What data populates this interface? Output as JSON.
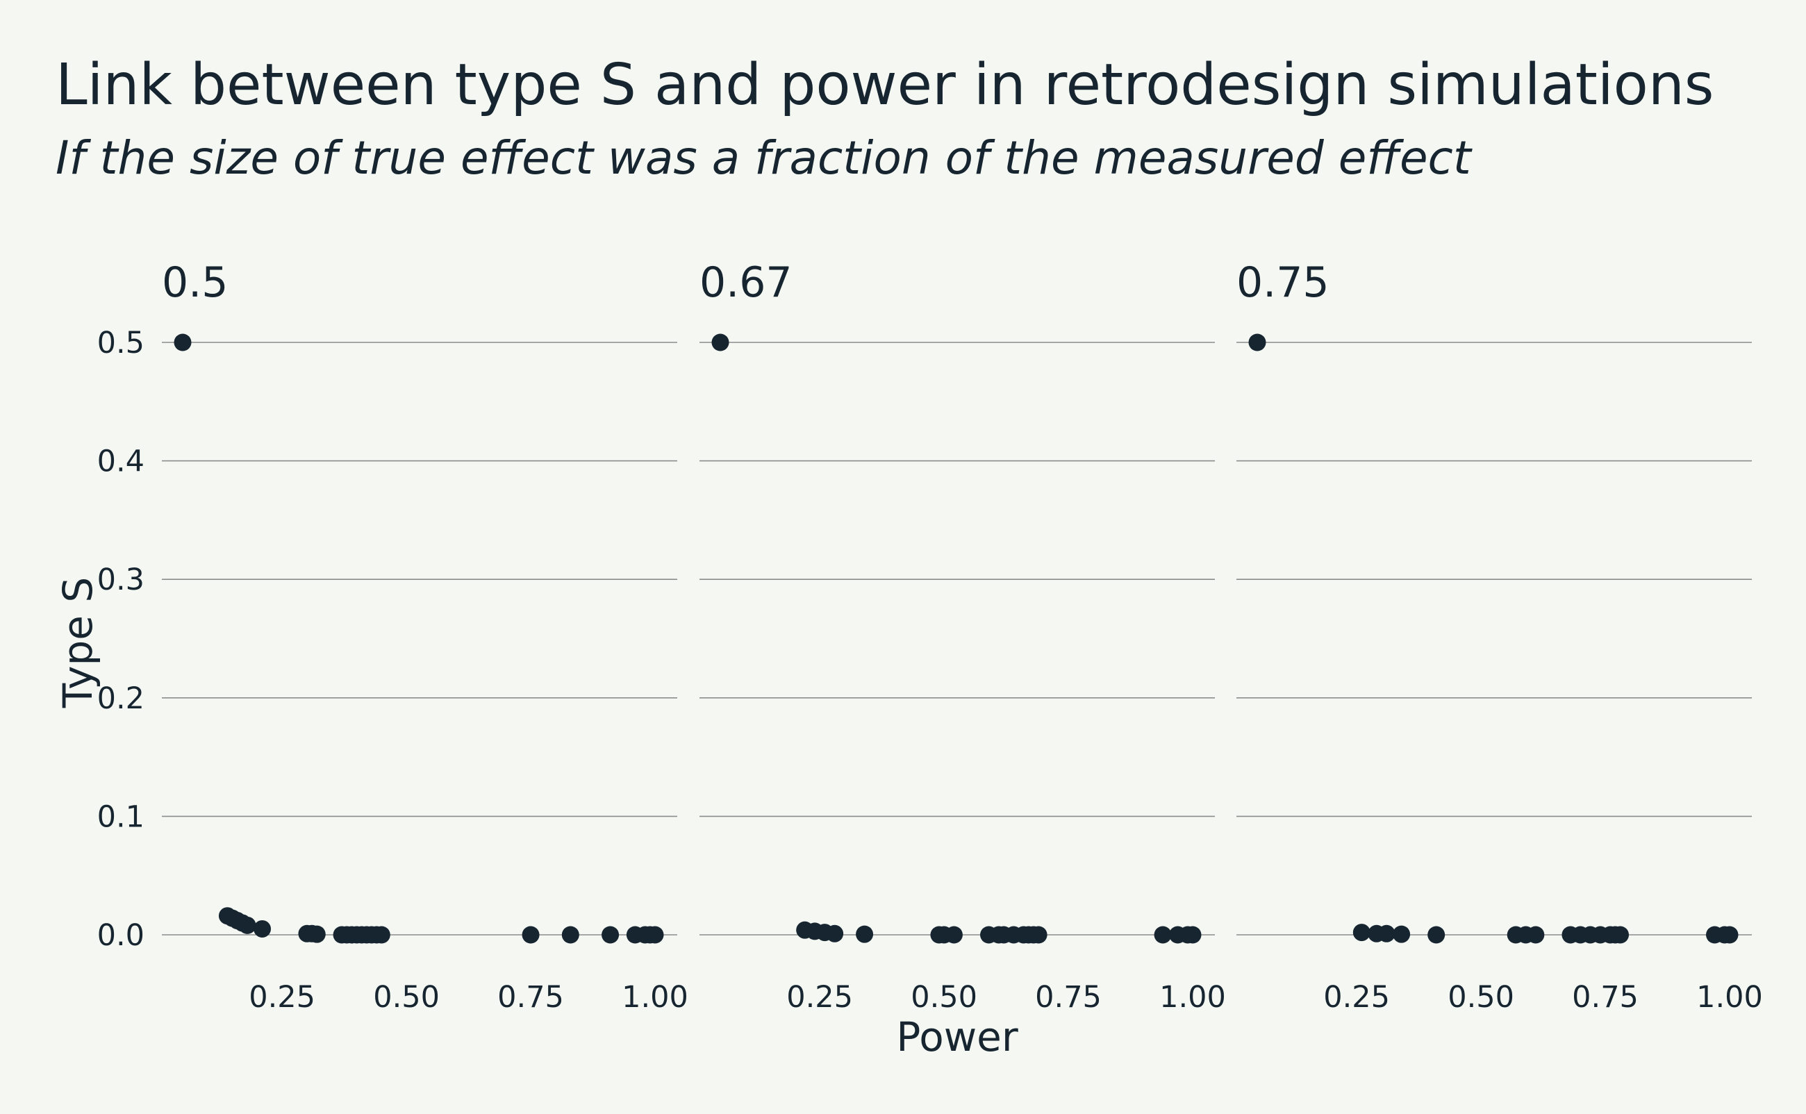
{
  "chart_data": {
    "type": "scatter",
    "title": "Link between type S and power in retrodesign simulations",
    "subtitle": "If the size of true effect was a fraction of the measured effect",
    "xlabel": "Power",
    "ylabel": "Type S",
    "ylim": [
      0,
      0.5
    ],
    "xlim": [
      0.05,
      1.0
    ],
    "y_ticks": [
      "0.0",
      "0.1",
      "0.2",
      "0.3",
      "0.4",
      "0.5"
    ],
    "x_ticks": [
      "0.25",
      "0.50",
      "0.75",
      "1.00"
    ],
    "grid": "horizontal",
    "point_color": "#16252f",
    "background": "#f5f7f3",
    "facets": [
      {
        "label": "0.5",
        "points": [
          [
            0.05,
            0.5
          ],
          [
            0.14,
            0.016
          ],
          [
            0.15,
            0.014
          ],
          [
            0.16,
            0.012
          ],
          [
            0.17,
            0.01
          ],
          [
            0.18,
            0.008
          ],
          [
            0.21,
            0.005
          ],
          [
            0.3,
            0.001
          ],
          [
            0.31,
            0.001
          ],
          [
            0.32,
            0.0005
          ],
          [
            0.37,
            0.0
          ],
          [
            0.38,
            0.0
          ],
          [
            0.39,
            0.0
          ],
          [
            0.4,
            0.0
          ],
          [
            0.41,
            0.0
          ],
          [
            0.42,
            0.0
          ],
          [
            0.43,
            0.0
          ],
          [
            0.44,
            0.0
          ],
          [
            0.45,
            0.0
          ],
          [
            0.75,
            0.0
          ],
          [
            0.83,
            0.0
          ],
          [
            0.91,
            0.0
          ],
          [
            0.96,
            0.0
          ],
          [
            0.98,
            0.0
          ],
          [
            0.99,
            0.0
          ],
          [
            1.0,
            0.0
          ]
        ]
      },
      {
        "label": "0.67",
        "points": [
          [
            0.05,
            0.5
          ],
          [
            0.22,
            0.004
          ],
          [
            0.24,
            0.003
          ],
          [
            0.26,
            0.002
          ],
          [
            0.28,
            0.001
          ],
          [
            0.34,
            0.0005
          ],
          [
            0.49,
            0.0
          ],
          [
            0.5,
            0.0
          ],
          [
            0.52,
            0.0
          ],
          [
            0.59,
            0.0
          ],
          [
            0.61,
            0.0
          ],
          [
            0.62,
            0.0
          ],
          [
            0.64,
            0.0
          ],
          [
            0.66,
            0.0
          ],
          [
            0.67,
            0.0
          ],
          [
            0.68,
            0.0
          ],
          [
            0.69,
            0.0
          ],
          [
            0.94,
            0.0
          ],
          [
            0.97,
            0.0
          ],
          [
            0.99,
            0.0
          ],
          [
            1.0,
            0.0
          ]
        ]
      },
      {
        "label": "0.75",
        "points": [
          [
            0.05,
            0.5
          ],
          [
            0.26,
            0.002
          ],
          [
            0.29,
            0.001
          ],
          [
            0.31,
            0.001
          ],
          [
            0.34,
            0.0005
          ],
          [
            0.41,
            0.0
          ],
          [
            0.57,
            0.0
          ],
          [
            0.59,
            0.0
          ],
          [
            0.61,
            0.0
          ],
          [
            0.68,
            0.0
          ],
          [
            0.7,
            0.0
          ],
          [
            0.72,
            0.0
          ],
          [
            0.74,
            0.0
          ],
          [
            0.76,
            0.0
          ],
          [
            0.77,
            0.0
          ],
          [
            0.78,
            0.0
          ],
          [
            0.97,
            0.0
          ],
          [
            0.99,
            0.0
          ],
          [
            1.0,
            0.0
          ]
        ]
      }
    ]
  }
}
